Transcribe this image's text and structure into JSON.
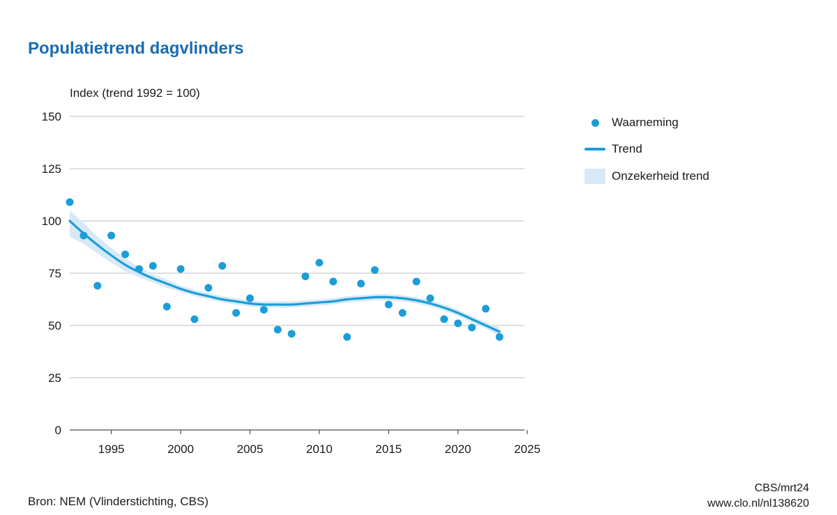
{
  "page": {
    "title": "Populatietrend dagvlinders",
    "axis_title": "Index (trend 1992 = 100)",
    "source": "Bron: NEM (Vlinderstichting, CBS)",
    "credit_line1": "CBS/mrt24",
    "credit_line2": "www.clo.nl/nl138620"
  },
  "legend": {
    "items": [
      {
        "label": "Waarneming",
        "swatch": "dot"
      },
      {
        "label": "Trend",
        "swatch": "line"
      },
      {
        "label": "Onzekerheid trend",
        "swatch": "band"
      }
    ]
  },
  "colors": {
    "title": "#1a6cb0",
    "accent": "#1b9dd9",
    "band": "#d7e9f7",
    "grid": "#cccccc",
    "axis": "#4d4d4d",
    "text": "#1a1a1a"
  },
  "chart_data": {
    "type": "scatter",
    "title": "Populatietrend dagvlinders",
    "xlabel": "",
    "ylabel": "Index (trend 1992 = 100)",
    "xlim": [
      1992,
      2025
    ],
    "ylim": [
      0,
      150
    ],
    "yticks": [
      0,
      25,
      50,
      75,
      100,
      125,
      150
    ],
    "xticks": [
      1995,
      2000,
      2005,
      2010,
      2015,
      2020,
      2025
    ],
    "grid": true,
    "legend_position": "right",
    "years": [
      1992,
      1993,
      1994,
      1995,
      1996,
      1997,
      1998,
      1999,
      2000,
      2001,
      2002,
      2003,
      2004,
      2005,
      2006,
      2007,
      2008,
      2009,
      2010,
      2011,
      2012,
      2013,
      2014,
      2015,
      2016,
      2017,
      2018,
      2019,
      2020,
      2021,
      2022,
      2023
    ],
    "series": [
      {
        "name": "Waarneming",
        "type": "scatter",
        "values": [
          109,
          93,
          69,
          93,
          84,
          77,
          78.5,
          59,
          77,
          53,
          68,
          78.5,
          56,
          63,
          57.5,
          48,
          46,
          73.5,
          80,
          71,
          44.5,
          70,
          76.5,
          60,
          56,
          71,
          63,
          53,
          51,
          49,
          58,
          44.5
        ]
      },
      {
        "name": "Trend",
        "type": "line",
        "values": [
          100,
          94,
          88.5,
          83.5,
          79,
          75.5,
          72.5,
          70,
          67.5,
          65.5,
          64,
          62.5,
          61.5,
          60.5,
          60,
          60,
          60,
          60.5,
          61,
          61.5,
          62.5,
          63,
          63.5,
          63.5,
          63,
          62,
          60.5,
          58.5,
          56,
          53,
          50,
          47
        ]
      },
      {
        "name": "Onzekerheid trend",
        "type": "band",
        "low": [
          92.5,
          89,
          84.5,
          80,
          76,
          73,
          70.5,
          68,
          66,
          64,
          62.5,
          61,
          60,
          59,
          58.5,
          58.5,
          58.5,
          59,
          59.5,
          60,
          61,
          61.5,
          62,
          62,
          61.5,
          60.5,
          59,
          57,
          54.5,
          51.5,
          48.5,
          45
        ],
        "high": [
          105,
          99,
          92.5,
          87,
          82,
          78,
          74.5,
          72,
          69,
          67,
          65.5,
          64,
          63,
          62,
          61.5,
          61.5,
          61.5,
          62,
          62.5,
          63,
          64,
          64.5,
          65,
          65,
          64.5,
          63.5,
          62,
          60,
          57.5,
          54.5,
          51.5,
          49
        ]
      }
    ]
  }
}
